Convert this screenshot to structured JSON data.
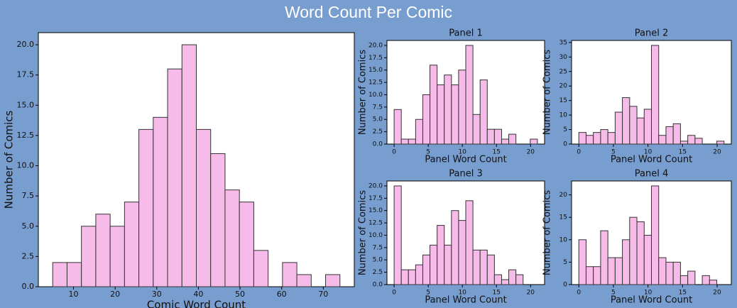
{
  "title": "Word Count Per Comic",
  "chart_data": [
    {
      "type": "histogram",
      "xlabel": "Comic Word Count",
      "ylabel": "Number of Comics",
      "color": "#f7bbe9",
      "bins": [
        5,
        8.45,
        11.9,
        15.35,
        18.8,
        22.25,
        25.7,
        29.15,
        32.6,
        36.05,
        39.5,
        42.95,
        46.4,
        49.85,
        53.3,
        56.75,
        60.2,
        63.65,
        67.1,
        70.55,
        74
      ],
      "values": [
        2,
        2,
        5,
        6,
        5,
        7,
        13,
        14,
        18,
        20,
        13,
        11,
        8,
        7,
        3,
        0,
        2,
        1,
        0,
        1
      ],
      "xlim": [
        1.55,
        77.45
      ],
      "xticks": [
        10,
        20,
        30,
        40,
        50,
        60,
        70
      ],
      "ylim": [
        0,
        21
      ],
      "yticks": [
        {
          "value": 0,
          "label": "0.0"
        },
        {
          "value": 2.5,
          "label": "2.5"
        },
        {
          "value": 5,
          "label": "5.0"
        },
        {
          "value": 7.5,
          "label": "7.5"
        },
        {
          "value": 10,
          "label": "10.0"
        },
        {
          "value": 12.5,
          "label": "12.5"
        },
        {
          "value": 15,
          "label": "15.0"
        },
        {
          "value": 17.5,
          "label": "17.5"
        },
        {
          "value": 20,
          "label": "20.0"
        }
      ]
    },
    {
      "type": "histogram",
      "title": "Panel 1",
      "xlabel": "Panel Word Count",
      "ylabel": "Number of Comics",
      "color": "#f7bbe9",
      "bins": [
        0,
        1.05,
        2.1,
        3.15,
        4.2,
        5.25,
        6.3,
        7.35,
        8.4,
        9.45,
        10.5,
        11.55,
        12.6,
        13.65,
        14.7,
        15.75,
        16.8,
        17.85,
        18.9,
        19.95,
        21
      ],
      "values": [
        7,
        1,
        1,
        5,
        10,
        16,
        12,
        14,
        12,
        15,
        20,
        6,
        13,
        3,
        3,
        1,
        2,
        0,
        0,
        1
      ],
      "xlim": [
        -1.05,
        22.05
      ],
      "xticks": [
        0,
        5,
        10,
        15,
        20
      ],
      "ylim": [
        0,
        21
      ],
      "yticks": [
        {
          "value": 0,
          "label": "0.0"
        },
        {
          "value": 2.5,
          "label": "2.5"
        },
        {
          "value": 5,
          "label": "5.0"
        },
        {
          "value": 7.5,
          "label": "7.5"
        },
        {
          "value": 10,
          "label": "10.0"
        },
        {
          "value": 12.5,
          "label": "12.5"
        },
        {
          "value": 15,
          "label": "15.0"
        },
        {
          "value": 17.5,
          "label": "17.5"
        },
        {
          "value": 20,
          "label": "20.0"
        }
      ]
    },
    {
      "type": "histogram",
      "title": "Panel 2",
      "xlabel": "Panel Word Count",
      "ylabel": "Number of Comics",
      "color": "#f7bbe9",
      "bins": [
        0,
        1.05,
        2.1,
        3.15,
        4.2,
        5.25,
        6.3,
        7.35,
        8.4,
        9.45,
        10.5,
        11.55,
        12.6,
        13.65,
        14.7,
        15.75,
        16.8,
        17.85,
        18.9,
        19.95,
        21
      ],
      "values": [
        4,
        3,
        4,
        5,
        4,
        11,
        16,
        13,
        9,
        12,
        34,
        3,
        6,
        7,
        1,
        3,
        2,
        0,
        0,
        1
      ],
      "xlim": [
        -1.05,
        22.05
      ],
      "xticks": [
        0,
        5,
        10,
        15,
        20
      ],
      "ylim": [
        0,
        35.7
      ],
      "yticks": [
        0,
        5,
        10,
        15,
        20,
        25,
        30,
        35
      ]
    },
    {
      "type": "histogram",
      "title": "Panel 3",
      "xlabel": "Panel Word Count",
      "ylabel": "Number of Comics",
      "color": "#f7bbe9",
      "bins": [
        0,
        1.05,
        2.1,
        3.15,
        4.2,
        5.25,
        6.3,
        7.35,
        8.4,
        9.45,
        10.5,
        11.55,
        12.6,
        13.65,
        14.7,
        15.75,
        16.8,
        17.85,
        18.9,
        19.95,
        21
      ],
      "values": [
        20,
        3,
        3,
        4,
        6,
        8,
        12,
        8,
        15,
        13,
        17,
        7,
        7,
        6,
        2,
        1,
        3,
        2,
        0,
        0
      ],
      "xlim": [
        -1.05,
        22.05
      ],
      "xticks": [
        0,
        5,
        10,
        15,
        20
      ],
      "ylim": [
        0,
        21
      ],
      "yticks": [
        {
          "value": 0,
          "label": "0.0"
        },
        {
          "value": 2.5,
          "label": "2.5"
        },
        {
          "value": 5,
          "label": "5.0"
        },
        {
          "value": 7.5,
          "label": "7.5"
        },
        {
          "value": 10,
          "label": "10.0"
        },
        {
          "value": 12.5,
          "label": "12.5"
        },
        {
          "value": 15,
          "label": "15.0"
        },
        {
          "value": 17.5,
          "label": "17.5"
        },
        {
          "value": 20,
          "label": "20.0"
        }
      ]
    },
    {
      "type": "histogram",
      "title": "Panel 4",
      "xlabel": "Panel Word Count",
      "ylabel": "Number of Comics",
      "color": "#f7bbe9",
      "bins": [
        0,
        1.05,
        2.1,
        3.15,
        4.2,
        5.25,
        6.3,
        7.35,
        8.4,
        9.45,
        10.5,
        11.55,
        12.6,
        13.65,
        14.7,
        15.75,
        16.8,
        17.85,
        18.9,
        19.95,
        21
      ],
      "values": [
        10,
        4,
        4,
        12,
        6,
        6,
        10,
        15,
        14,
        11,
        22,
        6,
        5,
        5,
        2,
        3,
        0,
        2,
        1,
        0
      ],
      "xlim": [
        -1.05,
        22.05
      ],
      "xticks": [
        0,
        5,
        10,
        15,
        20
      ],
      "ylim": [
        0,
        23.1
      ],
      "yticks": [
        0,
        5,
        10,
        15,
        20
      ]
    }
  ]
}
